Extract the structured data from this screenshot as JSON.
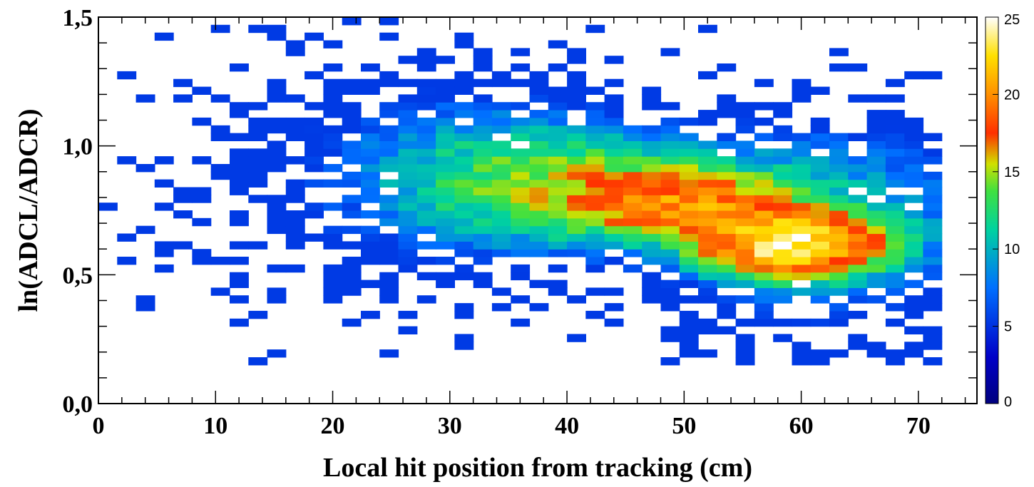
{
  "chart_data": {
    "type": "heatmap",
    "title": "",
    "xlabel": "Local hit position from tracking (cm)",
    "ylabel": "ln(ADCL/ADCR)",
    "xlim": [
      0,
      75
    ],
    "ylim": [
      0.0,
      1.5
    ],
    "x_ticks": [
      0,
      10,
      20,
      30,
      40,
      50,
      60,
      70
    ],
    "x_tick_labels": [
      "0",
      "10",
      "20",
      "30",
      "40",
      "50",
      "60",
      "70"
    ],
    "y_ticks": [
      0.0,
      0.5,
      1.0,
      1.5
    ],
    "y_tick_labels": [
      "0,0",
      "0,5",
      "1,0",
      "1,5"
    ],
    "x_bin_width": 1.6,
    "y_bin_width": 0.03,
    "color_scale": {
      "min": 0,
      "max": 25,
      "ticks": [
        0,
        5,
        10,
        15,
        20,
        25
      ],
      "tick_labels": [
        "0",
        "5",
        "10",
        "15",
        "20",
        "25"
      ],
      "colormap": "rainbow (dark blue to white)"
    },
    "grid": false,
    "density_components": [
      {
        "x": 59,
        "y": 0.62,
        "sx": 4.5,
        "sy": 0.07,
        "peak": 20
      },
      {
        "x": 50,
        "y": 0.78,
        "sx": 5.5,
        "sy": 0.08,
        "peak": 10
      },
      {
        "x": 40,
        "y": 0.85,
        "sx": 8,
        "sy": 0.15,
        "peak": 5
      },
      {
        "x": 30,
        "y": 0.9,
        "sx": 8,
        "sy": 0.25,
        "peak": 1.6
      },
      {
        "x": 62,
        "y": 0.7,
        "sx": 9,
        "sy": 0.25,
        "peak": 3
      },
      {
        "x": 15,
        "y": 0.85,
        "sx": 9,
        "sy": 0.35,
        "peak": 0.45
      }
    ],
    "x_data_range": [
      0,
      72
    ],
    "y_data_range": [
      0.15,
      1.5
    ]
  }
}
